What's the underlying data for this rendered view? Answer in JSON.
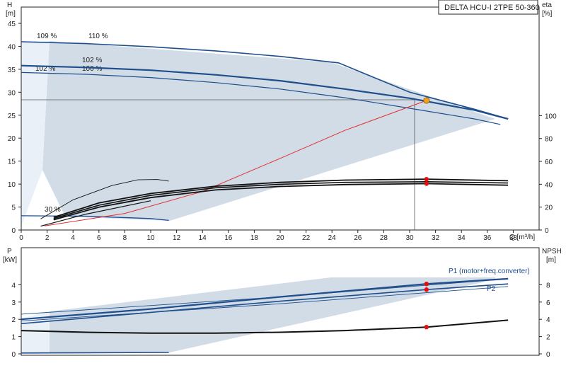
{
  "chart_data": [
    {
      "type": "line",
      "title": "DELTA HCU-I 2TPE 50-360",
      "xlabel": "Q [m³/h]",
      "ylabel_left": "H [m]",
      "ylabel_right": "eta [%]",
      "xlim": [
        0,
        40
      ],
      "ylim": [
        0,
        45
      ],
      "eta_ylim": [
        0,
        125
      ],
      "x_ticks": [
        0,
        2,
        4,
        6,
        8,
        10,
        12,
        14,
        16,
        18,
        20,
        22,
        24,
        26,
        28,
        30,
        32,
        34,
        36,
        38
      ],
      "y_ticks": [
        0,
        5,
        10,
        15,
        20,
        25,
        30,
        35,
        40,
        45
      ],
      "eta_ticks": [
        0,
        20,
        40,
        60,
        80,
        100
      ],
      "grid": false,
      "speed_labels": [
        "109 %",
        "110 %",
        "102 %",
        "100 %",
        "102 %",
        "30 %"
      ],
      "operating_point": {
        "q": 31.3,
        "h": 28.2
      },
      "series": [
        {
          "name": "110 %",
          "x": [
            0,
            5,
            10,
            15,
            20,
            24.5,
            30,
            35,
            37.6
          ],
          "y": [
            41.0,
            40.6,
            39.9,
            39.0,
            37.8,
            36.4,
            30.0,
            26.3,
            24.2
          ]
        },
        {
          "name": "100 %",
          "x": [
            0,
            5,
            10,
            15,
            20,
            25,
            30,
            35,
            37.6
          ],
          "y": [
            35.8,
            35.4,
            34.8,
            33.8,
            32.5,
            30.7,
            28.7,
            26.1,
            24.2
          ]
        },
        {
          "name": "102 %",
          "x": [
            0,
            5,
            10,
            15,
            20,
            25,
            30,
            35,
            37
          ],
          "y": [
            34.3,
            33.9,
            33.2,
            32.1,
            30.7,
            28.8,
            26.5,
            24.2,
            23.0
          ]
        },
        {
          "x": [
            0,
            5,
            10,
            11.4
          ],
          "y": [
            3.1,
            3.0,
            2.5,
            2.1
          ]
        },
        {
          "x": [
            1.8,
            8,
            14,
            20,
            25,
            31.3
          ],
          "y": [
            0.9,
            3.6,
            8.4,
            15.6,
            21.7,
            28.2
          ]
        },
        {
          "x": [
            1.5,
            4,
            7,
            9,
            10.5,
            11.4
          ],
          "y": [
            3.5,
            9.5,
            14.0,
            15.8,
            15.9,
            15.4
          ]
        },
        {
          "x": [
            2.5,
            6,
            10,
            15,
            20,
            25,
            31.3,
            37.6
          ],
          "y": [
            4.0,
            8.5,
            11.5,
            13.8,
            15.0,
            15.7,
            16.0,
            15.5
          ]
        },
        {
          "x": [
            2.5,
            6,
            10,
            15,
            20,
            25,
            31.3,
            37.6
          ],
          "y": [
            3.6,
            7.8,
            10.9,
            13.3,
            14.4,
            15.0,
            15.2,
            14.8
          ]
        },
        {
          "x": [
            2.5,
            6,
            10,
            15,
            20,
            25,
            31.3,
            37.6
          ],
          "y": [
            3.2,
            7.2,
            10.2,
            12.6,
            13.7,
            14.3,
            14.6,
            14.1
          ]
        },
        {
          "x": [
            1.5,
            5,
            10
          ],
          "y": [
            1.2,
            5.0,
            9.2
          ]
        }
      ]
    },
    {
      "type": "line",
      "xlabel": "",
      "ylabel_left": "P [kW]",
      "ylabel_right": "NPSH [m]",
      "xlim": [
        0,
        40
      ],
      "ylim": [
        0,
        5
      ],
      "npsh_ylim": [
        0,
        10
      ],
      "y_ticks": [
        0,
        1,
        2,
        3,
        4
      ],
      "npsh_ticks": [
        0,
        2,
        4,
        6,
        8
      ],
      "grid": false,
      "series": [
        {
          "name": "P1 (motor+freq.converter)",
          "x": [
            0,
            10,
            20,
            31.3,
            37.6
          ],
          "y": [
            2.0,
            2.6,
            3.3,
            4.05,
            4.35
          ]
        },
        {
          "name": "P2",
          "x": [
            0,
            10,
            20,
            31.3,
            37.6
          ],
          "y": [
            1.75,
            2.4,
            3.05,
            3.72,
            4.05
          ]
        },
        {
          "x": [
            0,
            5,
            10,
            15,
            20,
            25,
            31.3,
            37.6
          ],
          "y": [
            1.35,
            1.25,
            1.2,
            1.2,
            1.25,
            1.35,
            1.55,
            1.95
          ]
        },
        {
          "x": [
            0,
            11.4
          ],
          "y": [
            0.05,
            0.08
          ]
        }
      ],
      "operating_points": [
        {
          "q": 31.3,
          "y": 4.05
        },
        {
          "q": 31.3,
          "y": 3.72
        },
        {
          "q": 31.3,
          "y": 1.55
        }
      ]
    }
  ],
  "colors": {
    "band": "#c9d6e3",
    "curve_blue": "#1f4e8c",
    "system_red": "#e03030",
    "point_red": "#e01010",
    "point_orange": "#f2a31a",
    "black": "#111111"
  }
}
